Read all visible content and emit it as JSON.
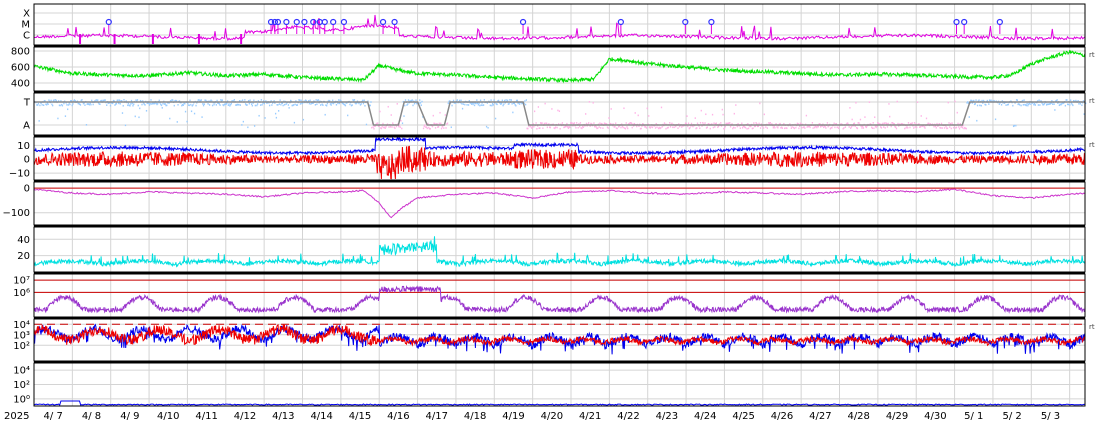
{
  "chart_data": [
    {
      "panel": "xray",
      "type": "line",
      "category_labels": [
        "X",
        "M",
        "C"
      ],
      "series": [
        {
          "color": "#e000e0",
          "baseline_category": "C"
        }
      ],
      "flare_markers_x_days": [
        1.95,
        6.18,
        6.28,
        6.36,
        6.58,
        6.85,
        7.05,
        7.28,
        7.45,
        7.58,
        7.8,
        8.08,
        9.1,
        9.4,
        12.75,
        15.3,
        16.98,
        17.66,
        24.05,
        24.25,
        25.18
      ]
    },
    {
      "panel": "solar-wind-speed",
      "type": "line",
      "yticks": [
        "800",
        "600",
        "400"
      ],
      "ylim": [
        300,
        850
      ],
      "series": [
        {
          "color": "#00dd00"
        }
      ],
      "profile_days": [
        0,
        1,
        2,
        3,
        4,
        5,
        6,
        7,
        8,
        8.6,
        9,
        9.5,
        10,
        11,
        12,
        13,
        13.5,
        14,
        14.6,
        15,
        15.5,
        16,
        17,
        18,
        19,
        20,
        21,
        22,
        23,
        24,
        25,
        25.5,
        26,
        26.5,
        27,
        27.4
      ],
      "profile_values": [
        610,
        520,
        500,
        490,
        530,
        490,
        510,
        470,
        450,
        440,
        620,
        560,
        520,
        500,
        470,
        450,
        440,
        430,
        450,
        700,
        680,
        640,
        600,
        560,
        540,
        520,
        500,
        510,
        500,
        480,
        470,
        500,
        640,
        720,
        790,
        740
      ]
    },
    {
      "panel": "imf-sector",
      "type": "line",
      "category_labels": [
        "T",
        "A"
      ],
      "series": [
        {
          "color": "#99ccff",
          "role": "toward"
        },
        {
          "color": "#ffb3e6",
          "role": "away"
        },
        {
          "color": "#888888",
          "role": "sector-boundary"
        }
      ],
      "boundary_days": [
        0,
        8.7,
        8.85,
        9.5,
        9.65,
        10.0,
        10.25,
        10.7,
        10.85,
        12.75,
        12.9,
        24.2,
        24.4,
        27.4
      ],
      "boundary_states": [
        1,
        1,
        0,
        0,
        1,
        1,
        0,
        0,
        1,
        1,
        0,
        0,
        1,
        1
      ]
    },
    {
      "panel": "imf-bz",
      "type": "line",
      "yticks": [
        "10",
        "0",
        "−10"
      ],
      "ylim": [
        -15,
        16
      ],
      "series": [
        {
          "color": "#0000ee",
          "role": "Bt"
        },
        {
          "color": "#ee0000",
          "role": "Bz"
        }
      ]
    },
    {
      "panel": "dst",
      "type": "line",
      "yticks": [
        "0",
        "−100"
      ],
      "ylim": [
        -150,
        25
      ],
      "series": [
        {
          "color": "#cc33cc"
        }
      ],
      "reference_lines": [
        {
          "value": 0,
          "color": "#cc0000"
        }
      ],
      "profile_days": [
        0,
        1,
        2,
        3,
        4,
        5,
        6,
        7,
        8,
        8.6,
        9,
        9.3,
        9.6,
        10,
        11,
        12,
        13,
        14,
        15,
        16,
        17,
        18,
        19,
        20,
        21,
        22,
        23,
        24,
        25,
        26,
        27,
        27.4
      ],
      "profile_values": [
        -5,
        -20,
        -25,
        -15,
        -20,
        -25,
        -35,
        -20,
        -15,
        -10,
        -60,
        -120,
        -80,
        -40,
        -25,
        -20,
        -40,
        -15,
        -10,
        -20,
        -25,
        -15,
        -20,
        -25,
        -15,
        -10,
        -15,
        -5,
        -30,
        -40,
        -25,
        -20
      ]
    },
    {
      "panel": "density",
      "type": "line",
      "yticks": [
        "40",
        "20"
      ],
      "ylim": [
        0,
        55
      ],
      "series": [
        {
          "color": "#00e0e0"
        }
      ]
    },
    {
      "panel": "electron-flux",
      "type": "line",
      "yticks": [
        "10⁷",
        "10⁶"
      ],
      "ylim_log10": [
        4,
        7.5
      ],
      "series": [
        {
          "color": "#9933cc"
        }
      ],
      "reference_lines": [
        {
          "log10": 7,
          "color": "#cc0000"
        },
        {
          "log10": 6,
          "color": "#cc0000"
        }
      ]
    },
    {
      "panel": "proton-flux",
      "type": "line",
      "yticks": [
        "10⁴",
        "10³",
        "10²"
      ],
      "ylim_log10": [
        0.5,
        4.5
      ],
      "series": [
        {
          "color": "#0000ee"
        },
        {
          "color": "#ee0000"
        }
      ],
      "reference_lines": [
        {
          "log10": 4,
          "color": "#cc0000",
          "style": "dashed"
        }
      ]
    },
    {
      "panel": "high-energy-proton",
      "type": "line",
      "yticks": [
        "10⁴",
        "10²",
        "10⁰"
      ],
      "ylim_log10": [
        -1,
        5
      ],
      "series": [
        {
          "color": "#0000ee"
        }
      ]
    }
  ],
  "x_axis": {
    "year_label": "2025",
    "tick_labels": [
      "4/ 7",
      "4/ 8",
      "4/ 9",
      "4/10",
      "4/11",
      "4/12",
      "4/13",
      "4/14",
      "4/15",
      "4/16",
      "4/17",
      "4/18",
      "4/19",
      "4/20",
      "4/21",
      "4/22",
      "4/23",
      "4/24",
      "4/25",
      "4/26",
      "4/27",
      "4/28",
      "4/29",
      "4/30",
      "5/ 1",
      "5/ 2",
      "5/ 3"
    ],
    "range_days": [
      0,
      27.4
    ]
  },
  "right_tags": [
    "rt",
    "rt",
    "rt",
    "rt"
  ],
  "colors": {
    "grid": "#d4d4d4",
    "frame": "#000000",
    "boundary": "#000000"
  }
}
